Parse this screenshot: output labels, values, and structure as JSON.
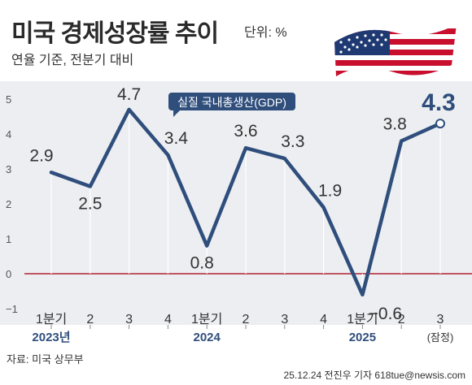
{
  "header": {
    "title": "미국 경제성장률 추이",
    "unit": "단위: %",
    "subtitle": "연율 기준, 전분기 대비"
  },
  "footer": {
    "source": "자료: 미국 상무부",
    "credit": "25.12.24 전진우 기자 618tue@newsis.com"
  },
  "colors": {
    "line": "#2f4e7c",
    "zero_line": "#b22233",
    "plot_bg": "#eceef2",
    "year_label": "#2f4e7c",
    "label_box": "#2f4e7c"
  },
  "chart_data": {
    "type": "line",
    "categories": [
      "1분기",
      "2",
      "3",
      "4",
      "1분기",
      "2",
      "3",
      "4",
      "1분기",
      "2",
      "3"
    ],
    "years": [
      {
        "label": "2023년",
        "index": 0
      },
      {
        "label": "2024",
        "index": 4
      },
      {
        "label": "2025",
        "index": 8
      }
    ],
    "note_last": "(잠정)",
    "series": [
      {
        "name": "실질 국내총생산(GDP)",
        "values": [
          2.9,
          2.5,
          4.7,
          3.4,
          0.8,
          3.6,
          3.3,
          1.9,
          -0.6,
          3.8,
          4.3
        ],
        "labels": [
          "2.9",
          "2.5",
          "4.7",
          "3.4",
          "0.8",
          "3.6",
          "3.3",
          "1.9",
          "−0.6",
          "3.8",
          "4.3"
        ]
      }
    ],
    "yticks": [
      "−1",
      "0",
      "1",
      "2",
      "3",
      "4",
      "5"
    ],
    "ylim": [
      -1,
      5.5
    ],
    "grid": false,
    "highlight_last": true
  }
}
